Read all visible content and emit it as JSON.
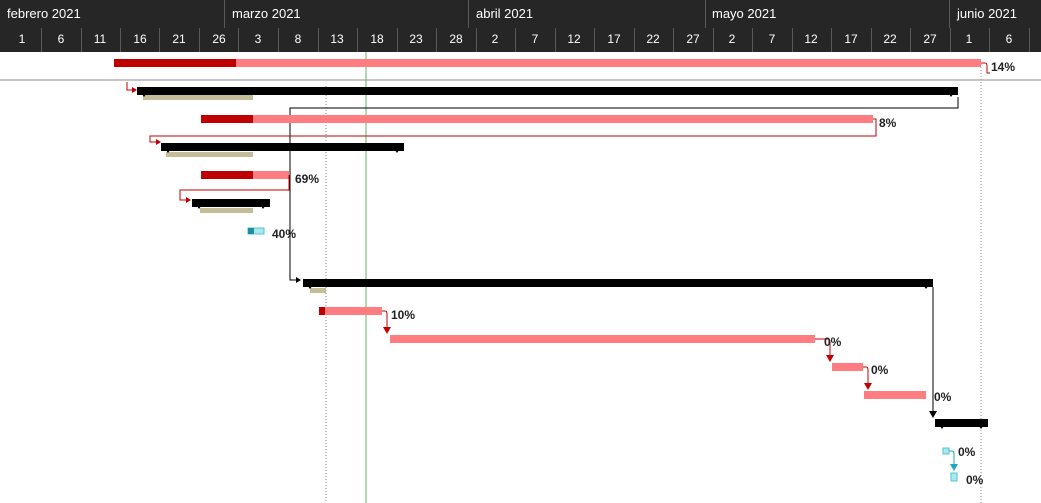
{
  "timescale": {
    "months": [
      "febrero 2021",
      "marzo 2021",
      "abril 2021",
      "mayo 2021",
      "junio 2021"
    ],
    "days": [
      "1",
      "6",
      "11",
      "16",
      "21",
      "26",
      "3",
      "8",
      "13",
      "18",
      "23",
      "28",
      "2",
      "7",
      "12",
      "17",
      "22",
      "27",
      "2",
      "7",
      "12",
      "17",
      "22",
      "27",
      "1",
      "6"
    ]
  },
  "tasks": [
    {
      "row": 1,
      "type": "progress-bar",
      "percent": "14%"
    },
    {
      "row": 2,
      "type": "summary"
    },
    {
      "row": 3,
      "type": "progress-bar",
      "percent": "8%"
    },
    {
      "row": 4,
      "type": "summary"
    },
    {
      "row": 5,
      "type": "progress-bar",
      "percent": "69%"
    },
    {
      "row": 6,
      "type": "summary"
    },
    {
      "row": 7,
      "type": "milestone-task",
      "percent": "40%"
    },
    {
      "row": 8,
      "type": "summary"
    },
    {
      "row": 9,
      "type": "progress-bar",
      "percent": "10%"
    },
    {
      "row": 10,
      "type": "progress-bar",
      "percent": "0%"
    },
    {
      "row": 11,
      "type": "progress-bar",
      "percent": "0%"
    },
    {
      "row": 12,
      "type": "progress-bar",
      "percent": "0%"
    },
    {
      "row": 13,
      "type": "summary"
    },
    {
      "row": 14,
      "type": "milestone-task",
      "percent": "0%"
    },
    {
      "row": 15,
      "type": "milestone-task",
      "percent": "0%"
    }
  ],
  "colors": {
    "header_bg": "#262626",
    "bar_done": "#c00000",
    "bar_remaining": "#ff7c80",
    "summary": "#000000",
    "baseline": "#c4bd97",
    "milestone": "#4bc8d8",
    "link": "#c00000",
    "today_line": "#5fb760"
  }
}
